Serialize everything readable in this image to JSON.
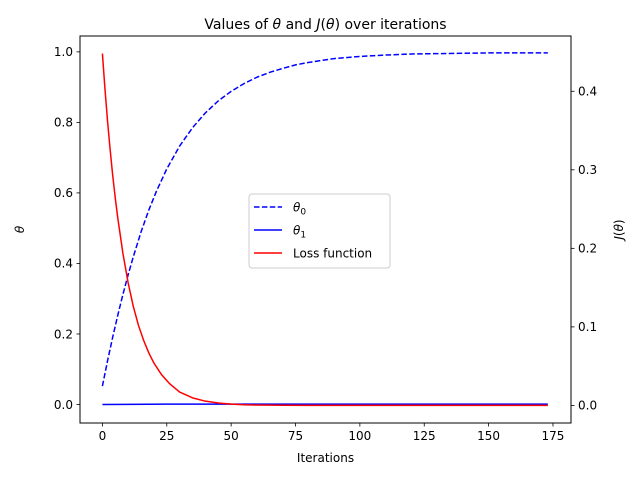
{
  "chart_data": {
    "type": "line",
    "title_parts": [
      "Values of ",
      "θ",
      " and ",
      "J",
      "(",
      "θ",
      ") over iterations"
    ],
    "xlabel": "Iterations",
    "ylabel": "θ",
    "y2label_parts": [
      "J",
      "(",
      "θ",
      ")"
    ],
    "xlim": [
      -8.7,
      182
    ],
    "ylim": [
      -0.0525,
      1.045
    ],
    "y2lim": [
      -0.0224,
      0.4704
    ],
    "xticks": [
      0,
      25,
      50,
      75,
      100,
      125,
      150,
      175
    ],
    "yticks": [
      0.0,
      0.2,
      0.4,
      0.6,
      0.8,
      1.0
    ],
    "ytick_labels": [
      "0.0",
      "0.2",
      "0.4",
      "0.6",
      "0.8",
      "1.0"
    ],
    "y2ticks": [
      0.0,
      0.1,
      0.2,
      0.3,
      0.4
    ],
    "y2tick_labels": [
      "0.0",
      "0.1",
      "0.2",
      "0.3",
      "0.4"
    ],
    "legend_position": "center",
    "grid": false,
    "series": [
      {
        "name": "θ0",
        "label_base": "θ",
        "label_sub": "0",
        "axis": "left",
        "color": "#0000ff",
        "style": "dashed",
        "x": [
          0,
          2,
          4,
          6,
          8,
          10,
          12,
          15,
          18,
          21,
          25,
          30,
          35,
          40,
          45,
          50,
          55,
          60,
          65,
          70,
          75,
          80,
          90,
          100,
          110,
          120,
          130,
          140,
          150,
          160,
          173
        ],
        "y": [
          0.052,
          0.124,
          0.191,
          0.254,
          0.313,
          0.368,
          0.419,
          0.489,
          0.551,
          0.605,
          0.668,
          0.733,
          0.785,
          0.827,
          0.861,
          0.888,
          0.91,
          0.928,
          0.942,
          0.953,
          0.963,
          0.97,
          0.981,
          0.987,
          0.991,
          0.994,
          0.995,
          0.996,
          0.997,
          0.997,
          0.997
        ]
      },
      {
        "name": "θ1",
        "label_base": "θ",
        "label_sub": "1",
        "axis": "left",
        "color": "#0000ff",
        "style": "solid",
        "x": [
          0,
          25,
          50,
          75,
          100,
          125,
          150,
          173
        ],
        "y": [
          0.0,
          0.001,
          0.001,
          0.001,
          0.001,
          0.001,
          0.001,
          0.001
        ]
      },
      {
        "name": "Loss function",
        "axis": "right",
        "color": "#ff0000",
        "style": "solid",
        "x": [
          0,
          1,
          2,
          3,
          4,
          5,
          6,
          8,
          10,
          12,
          14,
          16,
          18,
          20,
          23,
          26,
          30,
          35,
          40,
          45,
          50,
          55,
          60,
          70,
          80,
          100,
          125,
          150,
          173
        ],
        "y": [
          0.448,
          0.403,
          0.362,
          0.326,
          0.293,
          0.264,
          0.238,
          0.193,
          0.156,
          0.126,
          0.102,
          0.083,
          0.067,
          0.054,
          0.039,
          0.028,
          0.017,
          0.0096,
          0.0054,
          0.003,
          0.0017,
          0.0009,
          0.0005,
          0.00015,
          5e-05,
          0.0,
          0.0,
          0.0,
          0.0
        ]
      }
    ]
  }
}
